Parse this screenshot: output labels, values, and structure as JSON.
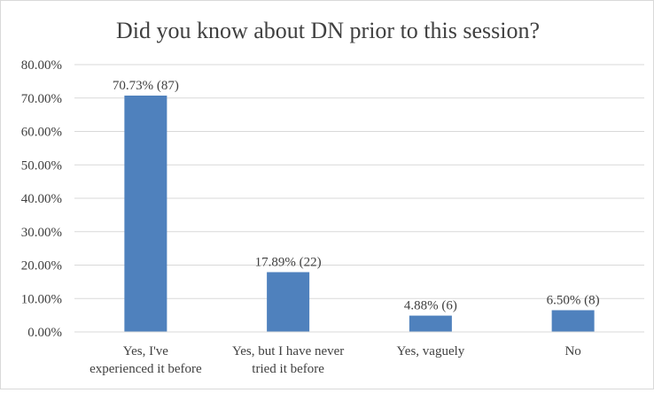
{
  "chart_data": {
    "type": "bar",
    "title": "Did you know about DN prior to this session?",
    "xlabel": "",
    "ylabel": "",
    "categories": [
      [
        "Yes, I've",
        "experienced it before"
      ],
      [
        "Yes, but I have never",
        "tried it before"
      ],
      [
        "Yes, vaguely"
      ],
      [
        "No"
      ]
    ],
    "values": [
      70.73,
      17.89,
      4.88,
      6.5
    ],
    "data_labels": [
      "70.73% (87)",
      "17.89% (22)",
      "4.88% (6)",
      "6.50% (8)"
    ],
    "ylim": [
      0,
      80
    ],
    "yticks": [
      "0.00%",
      "10.00%",
      "20.00%",
      "30.00%",
      "40.00%",
      "50.00%",
      "60.00%",
      "70.00%",
      "80.00%"
    ],
    "grid": true,
    "bar_color": "#4f81bd",
    "gridline_color": "#d9d9d9",
    "text_color": "#404040"
  }
}
